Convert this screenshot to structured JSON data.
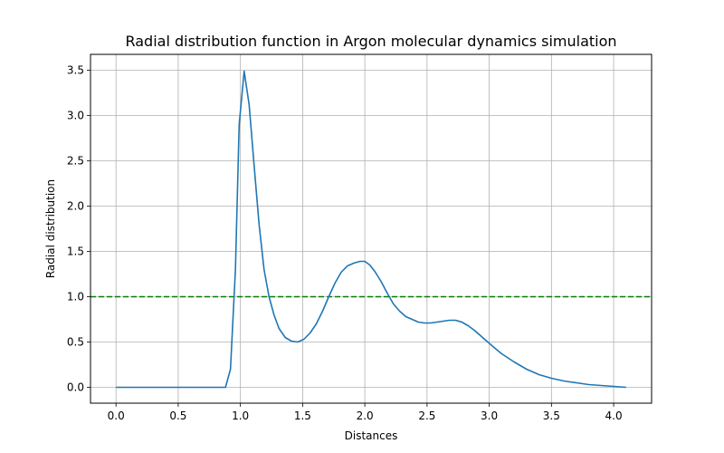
{
  "chart_data": {
    "type": "line",
    "title": "Radial distribution function in Argon molecular dynamics simulation",
    "xlabel": "Distances",
    "ylabel": "Radial distribution",
    "xlim": [
      -0.205,
      4.305
    ],
    "ylim": [
      -0.175,
      3.675
    ],
    "xticks": [
      0.0,
      0.5,
      1.0,
      1.5,
      2.0,
      2.5,
      3.0,
      3.5,
      4.0
    ],
    "xtick_labels": [
      "0.0",
      "0.5",
      "1.0",
      "1.5",
      "2.0",
      "2.5",
      "3.0",
      "3.5",
      "4.0"
    ],
    "yticks": [
      0.0,
      0.5,
      1.0,
      1.5,
      2.0,
      2.5,
      3.0,
      3.5
    ],
    "ytick_labels": [
      "0.0",
      "0.5",
      "1.0",
      "1.5",
      "2.0",
      "2.5",
      "3.0",
      "3.5"
    ],
    "grid": true,
    "series": [
      {
        "color": "#1f77b4",
        "x": [
          0.0,
          0.5,
          0.88,
          0.92,
          0.96,
          0.99,
          1.03,
          1.07,
          1.11,
          1.15,
          1.19,
          1.23,
          1.27,
          1.31,
          1.36,
          1.41,
          1.46,
          1.51,
          1.56,
          1.61,
          1.66,
          1.71,
          1.76,
          1.81,
          1.86,
          1.91,
          1.96,
          2.0,
          2.04,
          2.08,
          2.13,
          2.18,
          2.23,
          2.28,
          2.33,
          2.38,
          2.43,
          2.48,
          2.53,
          2.58,
          2.63,
          2.68,
          2.73,
          2.78,
          2.83,
          2.88,
          2.93,
          2.98,
          3.03,
          3.1,
          3.2,
          3.3,
          3.4,
          3.5,
          3.6,
          3.7,
          3.8,
          3.9,
          4.0,
          4.1
        ],
        "y": [
          0.0,
          0.0,
          0.0,
          0.2,
          1.3,
          2.9,
          3.49,
          3.12,
          2.45,
          1.8,
          1.3,
          1.0,
          0.8,
          0.65,
          0.55,
          0.51,
          0.5,
          0.53,
          0.6,
          0.7,
          0.84,
          1.0,
          1.15,
          1.27,
          1.34,
          1.37,
          1.39,
          1.39,
          1.35,
          1.28,
          1.17,
          1.04,
          0.92,
          0.84,
          0.78,
          0.75,
          0.72,
          0.71,
          0.71,
          0.72,
          0.73,
          0.74,
          0.74,
          0.72,
          0.68,
          0.63,
          0.57,
          0.51,
          0.45,
          0.37,
          0.28,
          0.2,
          0.14,
          0.1,
          0.07,
          0.05,
          0.03,
          0.02,
          0.01,
          0.0
        ]
      }
    ],
    "reference_line": {
      "y": 1.0,
      "color": "#008000",
      "style": "dashed"
    }
  }
}
